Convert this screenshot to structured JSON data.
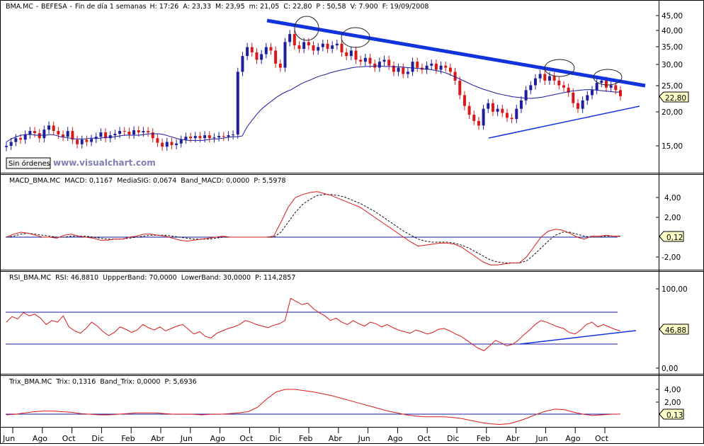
{
  "colors": {
    "up": "#1f1f9e",
    "down": "#d81a1a",
    "trend": "#1133dd",
    "ma": "#1a1aa0",
    "red_line": "#d81a1a",
    "signal": "#111111",
    "band": "#1a1aa0",
    "grid": "#000000",
    "value_box": "#ffffc8"
  },
  "header": {
    "symbol": "BMA.MC",
    "sep": "-",
    "name": "BEFESA",
    "period": "Fin de día 1 semanas",
    "high": "H: 17:26",
    "avg": "A: 23,33",
    "max": "M: 23,95",
    "min": "m: 21,05",
    "close": "C: 22,80",
    "p": "P : 50,58",
    "volume": "V: 7.900",
    "date": "F: 19/09/2008"
  },
  "controls": {
    "orders_button": "Sin órdenes",
    "watermark": "www.visualchart.com"
  },
  "price_panel": {
    "last_value": "22,80",
    "ticks": [
      "45,00",
      "40,00",
      "35,00",
      "30,00",
      "25,00",
      "20,00",
      "15,00"
    ]
  },
  "macd_panel": {
    "title": "MACD_BMA.MC",
    "macd": "MACD: 0,1167",
    "signal": "MediaSIG: 0,0674",
    "band": "Band_MACD: 0,0000",
    "p": "P: 5,5978",
    "last_value": "0,12",
    "ticks": [
      "4,00",
      "2,00",
      "-2,00"
    ]
  },
  "rsi_panel": {
    "title": "RSI_BMA.MC",
    "rsi": "RSI: 46,8810",
    "upper": "UppperBand: 70,0000",
    "lower": "LowerBand: 30,0000",
    "p": "P: 114,2857",
    "last_value": "46,88",
    "ticks": [
      "100,00",
      "0,00"
    ]
  },
  "trix_panel": {
    "title": "Trix_BMA.MC",
    "trix": "Trix: 0,1316",
    "band": "Band_Trix: 0,0000",
    "p": "P: 5,6936",
    "last_value": "0,13",
    "ticks": [
      "4,00",
      "2,00"
    ]
  },
  "x_axis": {
    "labels": [
      "Jun",
      "Ago",
      "Oct",
      "Dic",
      "Feb",
      "Abr",
      "Jun",
      "Ago",
      "Oct",
      "Dic",
      "Feb",
      "Abr",
      "Jun",
      "Ago",
      "Oct",
      "Dic",
      "Feb",
      "Abr",
      "Jun",
      "Ago",
      "Oct"
    ]
  },
  "chart_data": [
    {
      "type": "candlestick",
      "title": "BMA.MC - BEFESA",
      "ylim": [
        11,
        46
      ],
      "scale": "log",
      "x_range": [
        "Jun 2006",
        "Oct 2008"
      ],
      "close_series": [
        15.0,
        15.5,
        16.0,
        15.8,
        16.5,
        17.0,
        16.7,
        16.0,
        17.2,
        17.8,
        17.0,
        16.5,
        16.2,
        17.0,
        15.8,
        15.2,
        15.8,
        15.5,
        15.9,
        16.2,
        16.8,
        16.0,
        16.4,
        16.6,
        17.0,
        16.9,
        16.5,
        17.1,
        16.8,
        17.0,
        16.8,
        16.0,
        15.4,
        14.9,
        15.5,
        15.1,
        15.3,
        15.8,
        16.2,
        16.0,
        16.3,
        16.0,
        16.4,
        16.0,
        16.1,
        16.3,
        16.2,
        16.4,
        16.5,
        28.0,
        32.0,
        34.5,
        33.0,
        31.0,
        32.5,
        34.5,
        33.5,
        30.0,
        29.0,
        36.0,
        38.5,
        35.0,
        34.0,
        36.0,
        35.0,
        33.5,
        34.5,
        35.5,
        34.0,
        35.0,
        35.5,
        33.0,
        32.0,
        33.5,
        31.0,
        30.5,
        31.5,
        30.0,
        29.0,
        30.5,
        31.0,
        29.5,
        28.0,
        29.0,
        27.5,
        28.0,
        30.5,
        29.0,
        28.5,
        29.5,
        30.0,
        28.5,
        29.5,
        29.0,
        28.0,
        26.0,
        23.0,
        21.0,
        19.5,
        18.5,
        17.8,
        20.5,
        21.5,
        20.0,
        20.5,
        19.8,
        19.0,
        18.8,
        20.5,
        22.0,
        24.0,
        25.0,
        26.5,
        27.5,
        26.0,
        27.0,
        26.0,
        25.0,
        24.5,
        23.5,
        21.5,
        20.5,
        22.0,
        23.0,
        24.0,
        25.5,
        26.0,
        24.5,
        25.0,
        24.0,
        22.8
      ],
      "moving_average": [
        15.5,
        15.9,
        16.2,
        16.4,
        16.5,
        16.5,
        16.4,
        16.4,
        16.4,
        16.5,
        16.4,
        16.2,
        16.1,
        16.0,
        15.9,
        15.9,
        15.9,
        16.0,
        16.0,
        16.0,
        16.1,
        16.1,
        16.2,
        16.3,
        16.4,
        16.4,
        16.4,
        16.4,
        16.5,
        16.6,
        16.6,
        16.6,
        16.5,
        16.3,
        16.1,
        15.9,
        15.8,
        15.7,
        15.7,
        15.7,
        15.7,
        15.8,
        15.9,
        15.9,
        16.0,
        16.1,
        16.2,
        16.2,
        16.3,
        17.6,
        18.6,
        19.6,
        20.5,
        21.2,
        21.9,
        22.6,
        23.2,
        23.7,
        24.1,
        24.7,
        25.3,
        25.8,
        26.2,
        26.7,
        27.1,
        27.4,
        27.8,
        28.1,
        28.4,
        28.6,
        28.9,
        29.1,
        29.2,
        29.3,
        29.3,
        29.4,
        29.4,
        29.3,
        29.3,
        29.2,
        29.2,
        29.1,
        29.0,
        28.9,
        28.8,
        28.7,
        28.6,
        28.4,
        28.2,
        27.9,
        27.5,
        27.0,
        26.5,
        26.0,
        25.5,
        25.0,
        24.6,
        24.2,
        23.9,
        23.6,
        23.3,
        23.1,
        22.9,
        22.7,
        22.6,
        22.5,
        22.4,
        22.4,
        22.5,
        22.6,
        22.8,
        23.0,
        23.2,
        23.4,
        23.6,
        23.8,
        23.9,
        24.0,
        24.1,
        24.1,
        24.0,
        23.9,
        23.8,
        23.7,
        23.6,
        23.6
      ],
      "trendlines": [
        {
          "name": "resistance",
          "from": [
            "Oct 2007",
            43.5
          ],
          "to": [
            "Oct 2008",
            25.0
          ]
        },
        {
          "name": "support",
          "from": [
            "Ene 2008",
            16.2
          ],
          "to": [
            "Oct 2008",
            20.8
          ]
        }
      ],
      "annotations": [
        "ellipse around Nov 2007 high",
        "ellipse around Feb 2008 high",
        "ellipse around May 2008 high",
        "ellipse around Sep 2008 high"
      ]
    },
    {
      "type": "line",
      "title": "MACD_BMA.MC",
      "ylim": [
        -3,
        5
      ],
      "series": [
        {
          "name": "MACD",
          "values": [
            0.0,
            0.3,
            0.5,
            0.4,
            0.2,
            0.0,
            0.0,
            -0.1,
            0.2,
            0.3,
            0.1,
            0.0,
            -0.1,
            -0.3,
            -0.3,
            -0.2,
            -0.2,
            0.0,
            0.1,
            0.3,
            0.3,
            0.2,
            0.1,
            -0.1,
            -0.3,
            -0.4,
            -0.3,
            -0.2,
            -0.1,
            0.0,
            0.1,
            0.0,
            0.0,
            0.0,
            0.0,
            0.0,
            0.0,
            0.1,
            1.5,
            3.0,
            4.0,
            4.3,
            4.5,
            4.6,
            4.4,
            4.2,
            3.9,
            3.6,
            3.3,
            3.0,
            2.5,
            2.0,
            1.5,
            1.0,
            0.5,
            0.0,
            -0.5,
            -0.9,
            -0.8,
            -0.7,
            -0.6,
            -0.6,
            -0.7,
            -1.0,
            -1.5,
            -2.0,
            -2.5,
            -2.8,
            -2.8,
            -2.7,
            -2.6,
            -2.6,
            -2.0,
            -1.0,
            0.0,
            0.6,
            0.8,
            0.7,
            0.4,
            0.0,
            -0.2,
            0.1,
            0.1,
            0.2,
            0.1,
            0.12
          ]
        },
        {
          "name": "MediaSIG",
          "values": [
            0.0,
            0.1,
            0.3,
            0.4,
            0.3,
            0.2,
            0.1,
            0.0,
            0.0,
            0.1,
            0.1,
            0.1,
            0.0,
            -0.1,
            -0.2,
            -0.2,
            -0.2,
            -0.1,
            0.0,
            0.1,
            0.2,
            0.2,
            0.2,
            0.1,
            0.0,
            -0.1,
            -0.2,
            -0.2,
            -0.2,
            -0.1,
            0.0,
            0.0,
            0.0,
            0.0,
            0.0,
            0.0,
            0.0,
            0.0,
            0.5,
            1.5,
            2.5,
            3.3,
            3.8,
            4.2,
            4.3,
            4.3,
            4.2,
            4.0,
            3.7,
            3.4,
            3.0,
            2.6,
            2.1,
            1.6,
            1.1,
            0.6,
            0.2,
            -0.2,
            -0.4,
            -0.5,
            -0.5,
            -0.5,
            -0.6,
            -0.8,
            -1.1,
            -1.5,
            -1.9,
            -2.3,
            -2.5,
            -2.6,
            -2.6,
            -2.6,
            -2.4,
            -1.8,
            -1.1,
            -0.4,
            0.2,
            0.5,
            0.5,
            0.3,
            0.1,
            0.0,
            0.0,
            0.1,
            0.1,
            0.07
          ]
        }
      ],
      "bands": [
        0
      ]
    },
    {
      "type": "line",
      "title": "RSI_BMA.MC",
      "ylim": [
        0,
        100
      ],
      "series": [
        {
          "name": "RSI",
          "values": [
            58,
            65,
            62,
            70,
            66,
            68,
            63,
            55,
            60,
            58,
            66,
            52,
            47,
            44,
            50,
            58,
            53,
            46,
            41,
            45,
            52,
            49,
            45,
            48,
            55,
            51,
            48,
            52,
            47,
            50,
            53,
            55,
            49,
            43,
            46,
            40,
            38,
            44,
            47,
            50,
            52,
            55,
            60,
            58,
            55,
            53,
            51,
            54,
            56,
            60,
            88,
            84,
            80,
            82,
            75,
            70,
            66,
            60,
            63,
            58,
            55,
            60,
            56,
            53,
            58,
            56,
            52,
            55,
            51,
            48,
            46,
            44,
            48,
            46,
            43,
            45,
            49,
            50,
            47,
            43,
            40,
            35,
            30,
            25,
            22,
            28,
            35,
            32,
            28,
            30,
            35,
            42,
            48,
            55,
            60,
            58,
            55,
            52,
            50,
            45,
            43,
            48,
            55,
            58,
            52,
            55,
            52,
            49,
            46.88
          ]
        }
      ],
      "bands": [
        70,
        30
      ],
      "trendlines": [
        {
          "name": "rsi-support",
          "from": [
            "Feb 2008",
            30
          ],
          "to": [
            "Oct 2008",
            47
          ]
        }
      ]
    },
    {
      "type": "line",
      "title": "Trix_BMA.MC",
      "ylim": [
        -1.5,
        5
      ],
      "series": [
        {
          "name": "Trix",
          "values": [
            0.0,
            0.1,
            0.3,
            0.5,
            0.6,
            0.6,
            0.5,
            0.4,
            0.2,
            0.1,
            0.0,
            0.0,
            0.1,
            0.2,
            0.3,
            0.3,
            0.3,
            0.2,
            0.1,
            0.1,
            0.1,
            0.0,
            0.1,
            0.1,
            0.2,
            0.3,
            0.5,
            1.2,
            2.5,
            3.6,
            4.0,
            4.0,
            3.8,
            3.6,
            3.3,
            3.0,
            2.6,
            2.2,
            1.8,
            1.4,
            1.0,
            0.6,
            0.3,
            0.0,
            -0.2,
            -0.3,
            -0.3,
            -0.3,
            -0.4,
            -0.6,
            -0.9,
            -1.2,
            -1.4,
            -1.5,
            -1.4,
            -1.0,
            -0.5,
            0.1,
            0.6,
            0.9,
            0.8,
            0.4,
            0.1,
            -0.1,
            0.0,
            0.1,
            0.13
          ]
        }
      ],
      "bands": [
        0
      ]
    }
  ]
}
